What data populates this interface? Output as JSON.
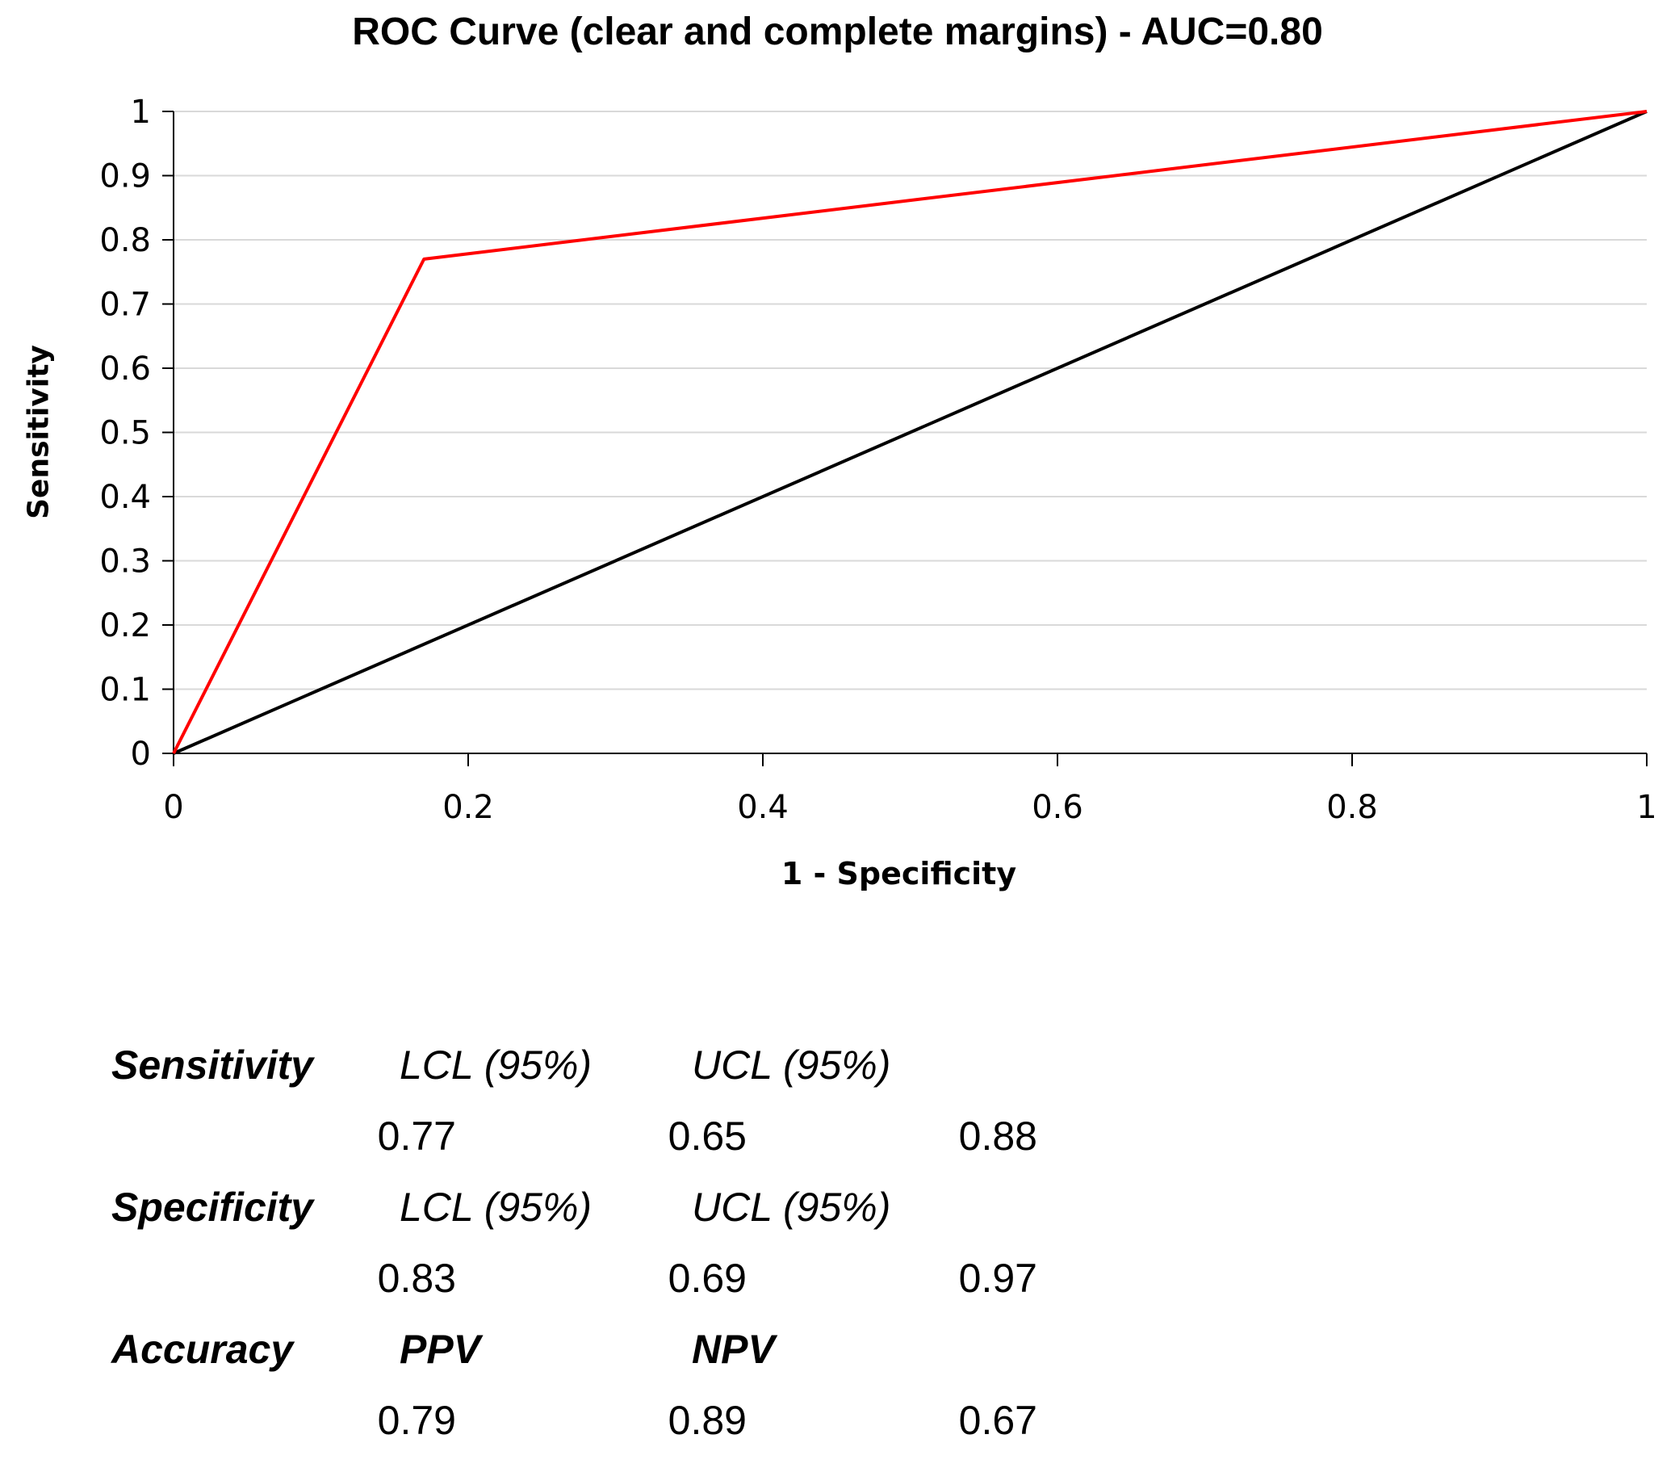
{
  "chart_data": {
    "type": "line",
    "title": "ROC Curve (clear and complete margins) - AUC=0.80",
    "xlabel": "1 - Specificity",
    "ylabel": "Sensitivity",
    "xlim": [
      0,
      1
    ],
    "ylim": [
      0,
      1
    ],
    "x_ticks": [
      "0",
      "0.2",
      "0.4",
      "0.6",
      "0.8",
      "1"
    ],
    "y_ticks": [
      "0",
      "0.1",
      "0.2",
      "0.3",
      "0.4",
      "0.5",
      "0.6",
      "0.7",
      "0.8",
      "0.9",
      "1"
    ],
    "grid": "horizontal",
    "legend": "none",
    "series": [
      {
        "color": "#ff0000",
        "x": [
          0,
          0.17,
          1
        ],
        "y": [
          0,
          0.77,
          1
        ]
      },
      {
        "color": "#000000",
        "x": [
          0,
          1
        ],
        "y": [
          0,
          1
        ]
      }
    ]
  },
  "stats": {
    "rows": [
      {
        "headers": [
          "Sensitivity",
          "LCL (95%)",
          "UCL (95%)"
        ],
        "values": [
          "0.77",
          "0.65",
          "0.88"
        ]
      },
      {
        "headers": [
          "Specificity",
          "LCL (95%)",
          "UCL (95%)"
        ],
        "values": [
          "0.83",
          "0.69",
          "0.97"
        ]
      },
      {
        "headers": [
          "Accuracy",
          "PPV",
          "NPV"
        ],
        "values": [
          "0.79",
          "0.89",
          "0.67"
        ]
      }
    ]
  }
}
